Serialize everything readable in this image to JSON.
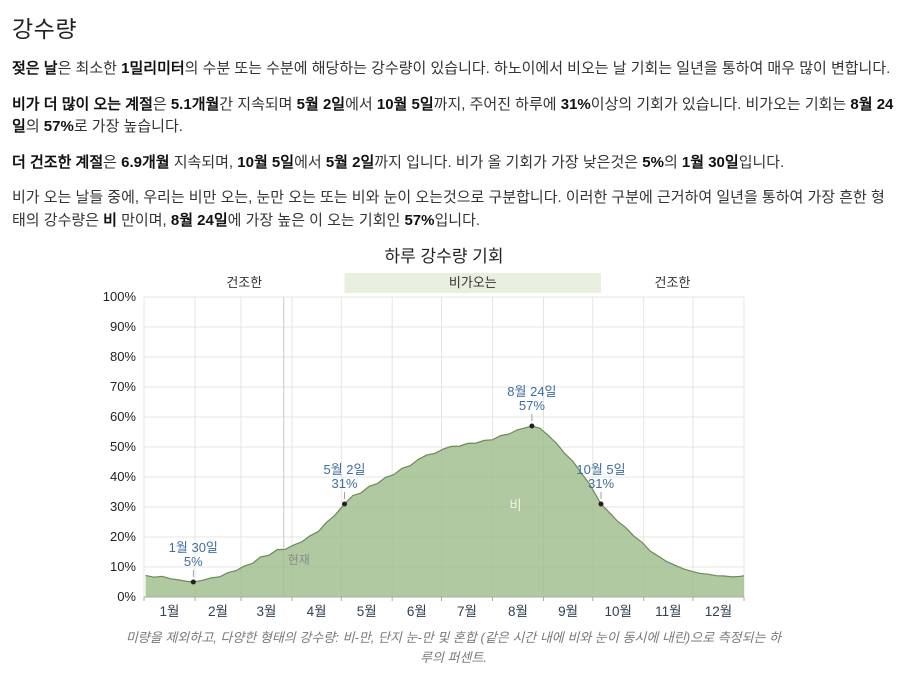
{
  "page": {
    "title": "강수량",
    "paragraphs": [
      [
        {
          "t": "젖은 날",
          "b": true
        },
        {
          "t": "은 최소한 ",
          "b": false
        },
        {
          "t": "1밀리미터",
          "b": true
        },
        {
          "t": "의 수분 또는 수분에 해당하는 강수량이 있습니다. 하노이에서 비오는 날 기회는 일년을 통하여 매우 많이 변합니다.",
          "b": false
        }
      ],
      [
        {
          "t": "비가 더 많이 오는 계절",
          "b": true
        },
        {
          "t": "은 ",
          "b": false
        },
        {
          "t": "5.1개월",
          "b": true
        },
        {
          "t": "간 지속되며 ",
          "b": false
        },
        {
          "t": "5월 2일",
          "b": true
        },
        {
          "t": "에서 ",
          "b": false
        },
        {
          "t": "10월 5일",
          "b": true
        },
        {
          "t": "까지, 주어진 하루에 ",
          "b": false
        },
        {
          "t": "31%",
          "b": true
        },
        {
          "t": "이상의 기회가 있습니다. 비가오는 기회는 ",
          "b": false
        },
        {
          "t": "8월 24일",
          "b": true
        },
        {
          "t": "의 ",
          "b": false
        },
        {
          "t": "57%",
          "b": true
        },
        {
          "t": "로 가장 높습니다.",
          "b": false
        }
      ],
      [
        {
          "t": "더 건조한 계절",
          "b": true
        },
        {
          "t": "은 ",
          "b": false
        },
        {
          "t": "6.9개월",
          "b": true
        },
        {
          "t": " 지속되며, ",
          "b": false
        },
        {
          "t": "10월 5일",
          "b": true
        },
        {
          "t": "에서 ",
          "b": false
        },
        {
          "t": "5월 2일",
          "b": true
        },
        {
          "t": "까지 입니다. 비가 올 기회가 가장 낮은것은 ",
          "b": false
        },
        {
          "t": "5%",
          "b": true
        },
        {
          "t": "의 ",
          "b": false
        },
        {
          "t": "1월 30일",
          "b": true
        },
        {
          "t": "입니다.",
          "b": false
        }
      ],
      [
        {
          "t": "비가 오는 날들 중에, 우리는 비만 오는, 눈만 오는 또는 비와 눈이 오는것으로 구분합니다. 이러한 구분에 근거하여 일년을 통하여 가장 흔한 형태의 강수량은 ",
          "b": false
        },
        {
          "t": "비",
          "b": true
        },
        {
          "t": " 만이며, ",
          "b": false
        },
        {
          "t": "8월 24일",
          "b": true
        },
        {
          "t": "에 가장 높은 이 오는 기회인 ",
          "b": false
        },
        {
          "t": "57%",
          "b": true
        },
        {
          "t": "입니다.",
          "b": false
        }
      ]
    ]
  },
  "chart_data": {
    "type": "area",
    "title": "하루 강수량 기회",
    "ylim": [
      0,
      100
    ],
    "grid": true,
    "y_ticks": [
      "0%",
      "10%",
      "20%",
      "30%",
      "40%",
      "50%",
      "60%",
      "70%",
      "80%",
      "90%",
      "100%"
    ],
    "months": [
      "1월",
      "2월",
      "3월",
      "4월",
      "5월",
      "6월",
      "7월",
      "8월",
      "9월",
      "10월",
      "11월",
      "12월"
    ],
    "month_boundaries": [
      0,
      31,
      59,
      90,
      120,
      151,
      181,
      212,
      243,
      273,
      304,
      334,
      365
    ],
    "seasons": [
      {
        "label": "건조한",
        "start_day": 0,
        "end_day": 122,
        "shaded": false
      },
      {
        "label": "비가오는",
        "start_day": 122,
        "end_day": 278,
        "shaded": true
      },
      {
        "label": "건조한",
        "start_day": 278,
        "end_day": 365,
        "shaded": false
      }
    ],
    "series": [
      {
        "name": "비",
        "label_day": 226,
        "label_pct": 29,
        "points": [
          [
            1,
            7.2
          ],
          [
            6,
            6.6
          ],
          [
            11,
            6.9
          ],
          [
            16,
            6.1
          ],
          [
            21,
            5.7
          ],
          [
            26,
            5.2
          ],
          [
            30,
            5.0
          ],
          [
            36,
            5.6
          ],
          [
            41,
            6.4
          ],
          [
            46,
            6.7
          ],
          [
            51,
            8.1
          ],
          [
            56,
            8.8
          ],
          [
            61,
            10.3
          ],
          [
            66,
            11.2
          ],
          [
            71,
            13.4
          ],
          [
            76,
            13.9
          ],
          [
            81,
            15.8
          ],
          [
            86,
            15.9
          ],
          [
            91,
            17.3
          ],
          [
            96,
            18.4
          ],
          [
            101,
            20.4
          ],
          [
            106,
            21.8
          ],
          [
            111,
            24.9
          ],
          [
            116,
            27.2
          ],
          [
            122,
            31.0
          ],
          [
            127,
            33.8
          ],
          [
            132,
            34.7
          ],
          [
            137,
            36.9
          ],
          [
            142,
            37.8
          ],
          [
            147,
            39.9
          ],
          [
            152,
            40.8
          ],
          [
            157,
            42.9
          ],
          [
            162,
            43.8
          ],
          [
            167,
            45.9
          ],
          [
            172,
            47.3
          ],
          [
            177,
            47.9
          ],
          [
            182,
            49.3
          ],
          [
            187,
            50.2
          ],
          [
            192,
            50.3
          ],
          [
            197,
            51.2
          ],
          [
            202,
            51.3
          ],
          [
            207,
            52.2
          ],
          [
            212,
            52.4
          ],
          [
            217,
            53.8
          ],
          [
            222,
            54.3
          ],
          [
            227,
            55.7
          ],
          [
            232,
            56.4
          ],
          [
            236,
            57.0
          ],
          [
            241,
            56.2
          ],
          [
            246,
            53.8
          ],
          [
            251,
            51.2
          ],
          [
            256,
            47.8
          ],
          [
            261,
            45.2
          ],
          [
            266,
            41.3
          ],
          [
            271,
            37.7
          ],
          [
            278,
            31.0
          ],
          [
            283,
            28.2
          ],
          [
            288,
            25.3
          ],
          [
            293,
            23.2
          ],
          [
            298,
            20.3
          ],
          [
            303,
            18.2
          ],
          [
            308,
            15.3
          ],
          [
            313,
            13.6
          ],
          [
            318,
            11.8
          ],
          [
            323,
            10.6
          ],
          [
            328,
            9.4
          ],
          [
            333,
            8.6
          ],
          [
            338,
            7.9
          ],
          [
            343,
            7.6
          ],
          [
            348,
            7.1
          ],
          [
            353,
            7.0
          ],
          [
            358,
            6.7
          ],
          [
            363,
            6.9
          ],
          [
            365,
            7.1
          ]
        ]
      }
    ],
    "annotations": [
      {
        "date": "1월 30일",
        "value": "5%",
        "day": 30,
        "pct": 5
      },
      {
        "date": "5월 2일",
        "value": "31%",
        "day": 122,
        "pct": 31
      },
      {
        "date": "8월 24일",
        "value": "57%",
        "day": 236,
        "pct": 57
      },
      {
        "date": "10월 5일",
        "value": "31%",
        "day": 278,
        "pct": 31
      }
    ],
    "now": {
      "label": "현재",
      "day": 85
    },
    "caption": "미량을 제외하고, 다양한 형태의 강수량: 비-만, 단지 눈-만 및 혼합 (같은 시간 내에 비와 눈이 동시에 내린)으로 측정되는 하루의 퍼센트.",
    "colors": {
      "area_fill": "#9dbb8a",
      "area_line": "#6a8a58",
      "band_fill": "#e8efde",
      "annotation": "#3f6e9e",
      "grid": "#e4e4e4",
      "axis": "#aaaaaa",
      "now": "#c9c9c9",
      "now_text": "#8a8a8a",
      "area_label": "#eef2e8",
      "tick_text": "#222222",
      "month_text": "#2f4154",
      "band_text": "#333333",
      "dot": "#222222"
    }
  }
}
